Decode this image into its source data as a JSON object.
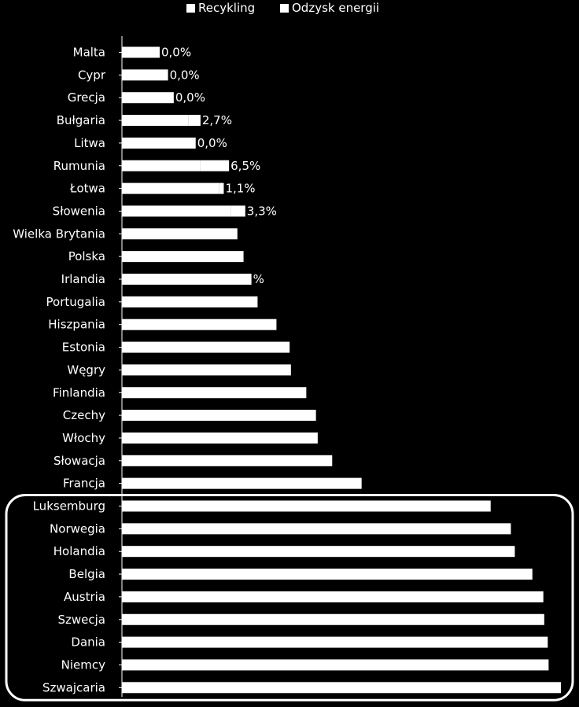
{
  "chart_data": {
    "type": "bar",
    "orientation": "horizontal",
    "stacked": true,
    "legend_position": "top",
    "grid": false,
    "categories": [
      "Malta",
      "Cypr",
      "Grecja",
      "Bułgaria",
      "Litwa",
      "Rumunia",
      "Łotwa",
      "Słowenia",
      "Wielka Brytania",
      "Polska",
      "Irlandia",
      "Portugalia",
      "Hiszpania",
      "Estonia",
      "Węgry",
      "Finlandia",
      "Czechy",
      "Włochy",
      "Słowacja",
      "Francja",
      "Luksemburg",
      "Norwegia",
      "Holandia",
      "Belgia",
      "Austria",
      "Szwecja",
      "Dania",
      "Niemcy",
      "Szwajcaria"
    ],
    "series": [
      {
        "name": "Recykling",
        "color": "#ffffff",
        "values": [
          8.6,
          10.5,
          11.8,
          15.2,
          16.8,
          17.9,
          22.1,
          24.8,
          26.3,
          27.7,
          29.5,
          30.9,
          35.2,
          38.2,
          38.5,
          42.0,
          44.2,
          44.6,
          47.9,
          54.6,
          84.0,
          88.6,
          89.5,
          93.5,
          96.0,
          96.2,
          97.0,
          97.2,
          100.0
        ]
      },
      {
        "name": "Odzysk energii",
        "color": "#ffffff",
        "values": [
          0,
          0,
          0,
          2.7,
          0,
          6.5,
          1.1,
          3.3,
          0,
          0,
          0,
          0,
          0,
          0,
          0,
          0,
          0,
          0,
          0,
          0,
          0,
          0,
          0,
          0,
          0,
          0,
          0,
          0,
          0
        ]
      }
    ],
    "data_labels": [
      "0,0%",
      "0,0%",
      "0,0%",
      "2,7%",
      "0,0%",
      "6,5%",
      "1,1%",
      "3,3%",
      "",
      "",
      "%",
      "",
      "",
      "",
      "",
      "",
      "",
      "",
      "",
      "",
      "",
      "",
      "",
      "",
      "",
      "",
      "",
      "",
      ""
    ],
    "xlim": [
      0,
      100
    ],
    "highlight_group": [
      "Luksemburg",
      "Norwegia",
      "Holandia",
      "Belgia",
      "Austria",
      "Szwecja",
      "Dania",
      "Niemcy",
      "Szwajcaria"
    ]
  }
}
